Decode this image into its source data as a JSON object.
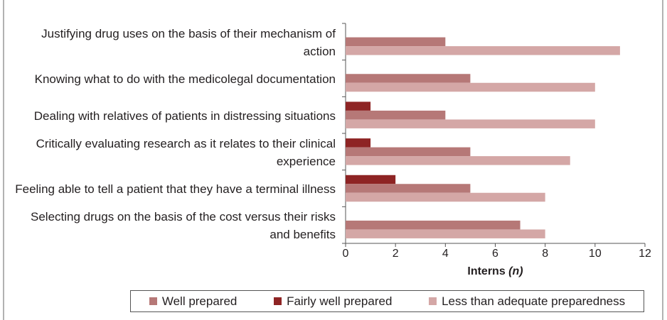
{
  "chart_data": {
    "type": "bar",
    "orientation": "horizontal",
    "categories": [
      "Justifying drug uses on the basis of their mechanism of action",
      "Knowing what to do with the medicolegal documentation",
      "Dealing with relatives of patients in distressing situations",
      "Critically evaluating research as it relates to their clinical experience",
      "Feeling able to tell a patient that they have a terminal illness",
      "Selecting drugs on the basis of the cost versus their risks and benefits"
    ],
    "series": [
      {
        "name": "Fairly well prepared",
        "color": "#8e2424",
        "values": [
          0,
          0,
          1,
          1,
          2,
          0
        ]
      },
      {
        "name": "Well prepared",
        "color": "#b67877",
        "values": [
          4,
          5,
          4,
          5,
          5,
          7
        ]
      },
      {
        "name": "Less than adequate preparedness",
        "color": "#d4a7a6",
        "values": [
          11,
          10,
          10,
          9,
          8,
          8
        ]
      }
    ],
    "legend_order": [
      1,
      0,
      2
    ],
    "x_label": "Interns",
    "x_label_unit": "(n)",
    "xlim": [
      0,
      12
    ],
    "xticks": [
      0,
      2,
      4,
      6,
      8,
      10,
      12
    ],
    "grid": false
  }
}
